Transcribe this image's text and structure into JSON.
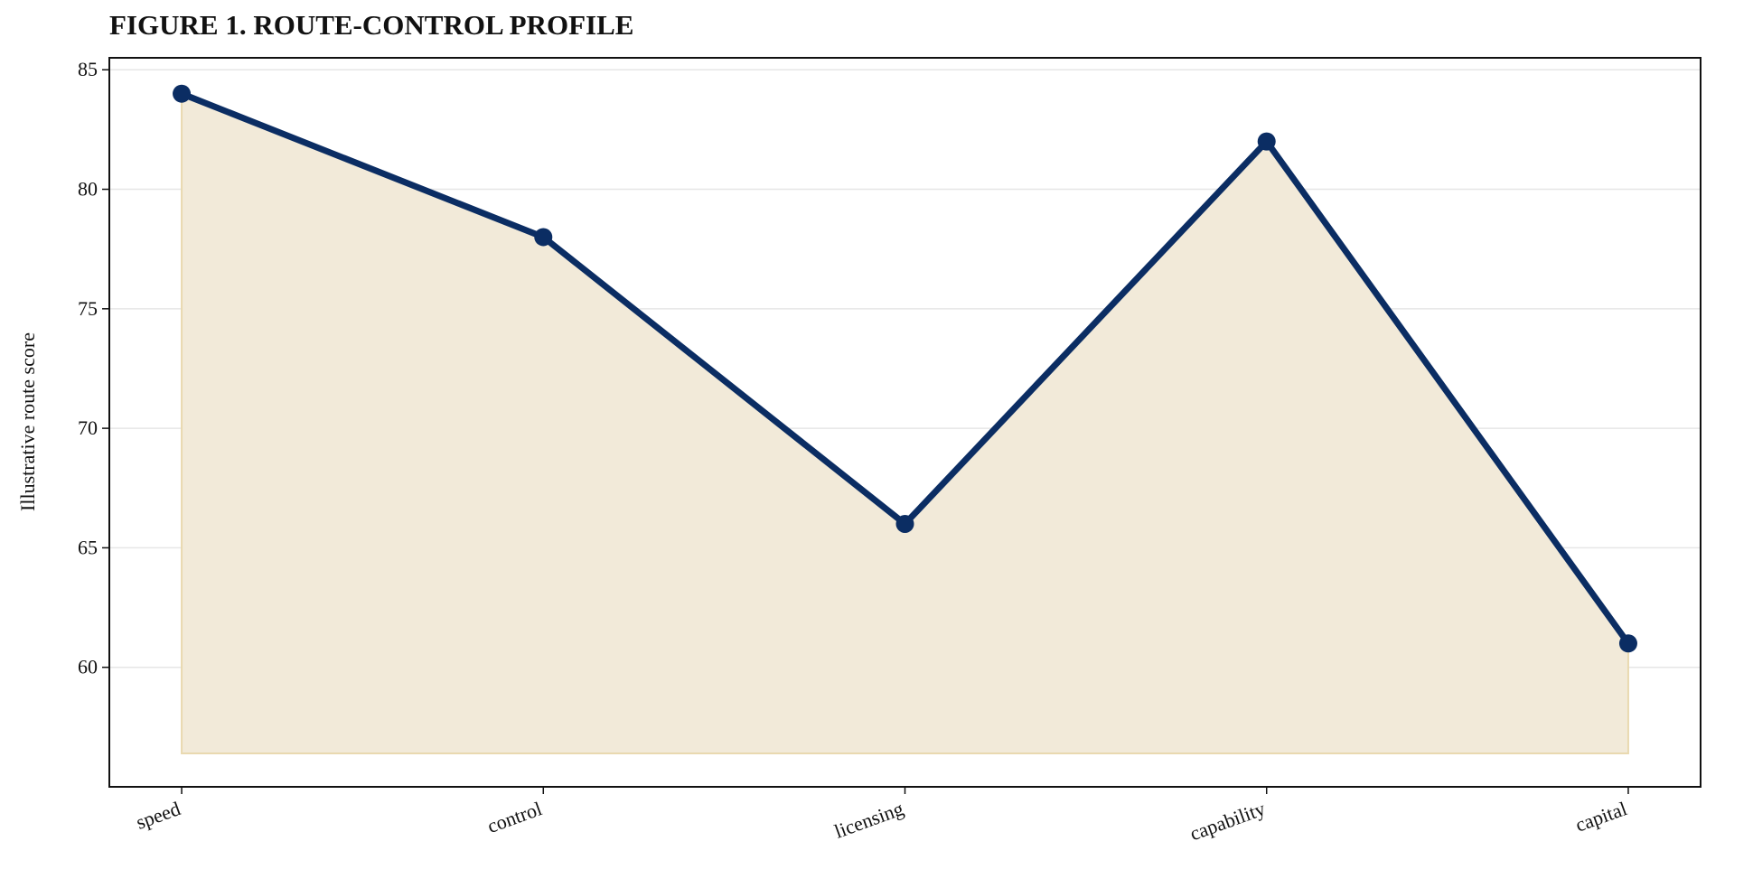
{
  "chart_data": {
    "type": "line",
    "title": "FIGURE 1. ROUTE-CONTROL PROFILE",
    "ylabel": "Illustrative route score",
    "categories": [
      "speed",
      "control",
      "licensing",
      "capability",
      "capital"
    ],
    "values": [
      84,
      78,
      66,
      82,
      61
    ],
    "color": "#0b2d63",
    "fill_color": "#f2ead9",
    "fill_edge": "#e9d9b0",
    "area_baseline": 56.4,
    "ylim": [
      55,
      85.5
    ],
    "yticks": [
      60,
      65,
      70,
      75,
      80,
      85
    ],
    "grid": true
  }
}
